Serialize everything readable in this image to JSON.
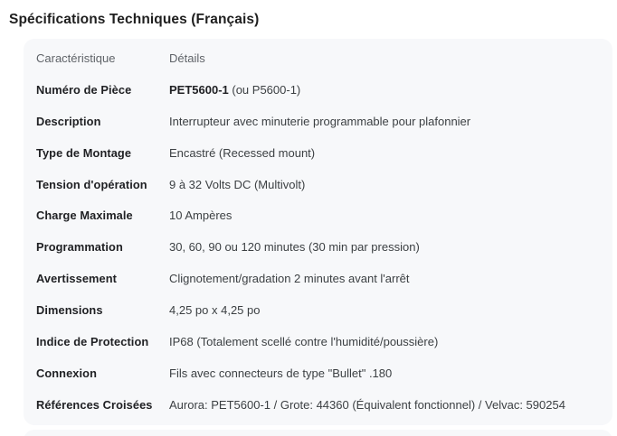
{
  "title": "Spécifications Techniques (Français)",
  "table": {
    "headers": [
      "Caractéristique",
      "Détails"
    ],
    "rows": [
      {
        "label": "Numéro de Pièce",
        "value_bold": "PET5600-1",
        "value": " (ou P5600-1)"
      },
      {
        "label": "Description",
        "value_bold": "",
        "value": "Interrupteur avec minuterie programmable pour plafonnier"
      },
      {
        "label": "Type de Montage",
        "value_bold": "",
        "value": "Encastré (Recessed mount)"
      },
      {
        "label": "Tension d'opération",
        "value_bold": "",
        "value": "9 à 32 Volts DC (Multivolt)"
      },
      {
        "label": "Charge Maximale",
        "value_bold": "",
        "value": "10 Ampères"
      },
      {
        "label": "Programmation",
        "value_bold": "",
        "value": "30, 60, 90 ou 120 minutes (30 min par pression)"
      },
      {
        "label": "Avertissement",
        "value_bold": "",
        "value": "Clignotement/gradation 2 minutes avant l'arrêt"
      },
      {
        "label": "Dimensions",
        "value_bold": "",
        "value": "4,25 po x 4,25 po"
      },
      {
        "label": "Indice de Protection",
        "value_bold": "",
        "value": "IP68 (Totalement scellé contre l'humidité/poussière)"
      },
      {
        "label": "Connexion",
        "value_bold": "",
        "value": "Fils avec connecteurs de type \"Bullet\" .180"
      },
      {
        "label": "Références Croisées",
        "value_bold": "",
        "value": "Aurora: PET5600-1 / Grote: 44360 (Équivalent fonctionnel) / Velvac: 590254"
      }
    ]
  },
  "colors": {
    "card_background": "#f7f8fa",
    "header_text": "#5f6368",
    "label_text": "#202124",
    "value_text": "#3c4043",
    "title_text": "#1f1f1f"
  }
}
